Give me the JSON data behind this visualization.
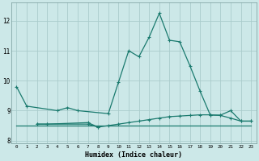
{
  "xlabel": "Humidex (Indice chaleur)",
  "background_color": "#cce8e8",
  "grid_color": "#aacccc",
  "line_color": "#1a7a6e",
  "x_values": [
    0,
    1,
    2,
    3,
    4,
    5,
    6,
    7,
    8,
    9,
    10,
    11,
    12,
    13,
    14,
    15,
    16,
    17,
    18,
    19,
    20,
    21,
    22,
    23
  ],
  "line1": [
    9.8,
    9.15,
    null,
    null,
    9.0,
    9.1,
    9.0,
    null,
    null,
    8.9,
    9.95,
    11.0,
    10.8,
    11.45,
    12.25,
    11.35,
    11.3,
    10.5,
    9.65,
    8.85,
    8.85,
    9.0,
    8.65,
    8.65
  ],
  "line2": [
    null,
    null,
    8.55,
    8.55,
    null,
    null,
    null,
    8.6,
    8.45,
    null,
    null,
    null,
    null,
    null,
    null,
    null,
    null,
    null,
    null,
    null,
    null,
    null,
    null,
    null
  ],
  "line3": [
    null,
    null,
    8.55,
    8.55,
    null,
    null,
    null,
    8.55,
    8.45,
    8.5,
    8.55,
    8.6,
    8.65,
    8.7,
    8.75,
    8.8,
    8.82,
    8.84,
    8.86,
    8.86,
    8.84,
    8.75,
    8.65,
    8.65
  ],
  "line4": [
    8.5,
    8.5,
    8.5,
    8.5,
    8.5,
    8.5,
    8.5,
    8.5,
    8.5,
    8.5,
    8.5,
    8.5,
    8.5,
    8.5,
    8.5,
    8.5,
    8.5,
    8.5,
    8.5,
    8.5,
    8.5,
    8.5,
    8.5,
    8.5
  ],
  "ylim": [
    7.9,
    12.6
  ],
  "yticks": [
    8,
    9,
    10,
    11,
    12
  ],
  "xlim": [
    -0.5,
    23.5
  ]
}
